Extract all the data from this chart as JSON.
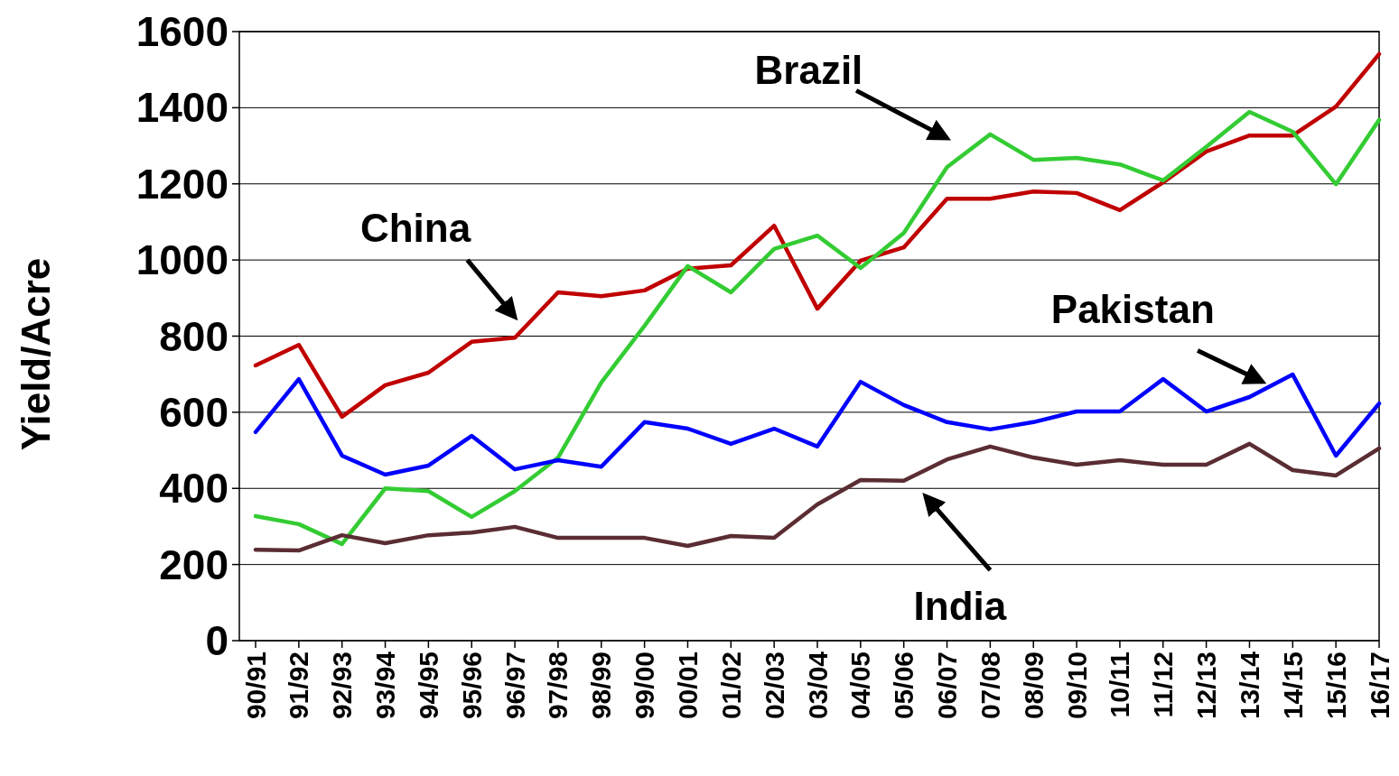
{
  "chart_data": {
    "type": "line",
    "ylabel": "Yield/Acre",
    "categories": [
      "90/91",
      "91/92",
      "92/93",
      "93/94",
      "94/95",
      "95/96",
      "96/97",
      "97/98",
      "98/99",
      "99/00",
      "00/01",
      "01/02",
      "02/03",
      "03/04",
      "04/05",
      "05/06",
      "06/07",
      "07/08",
      "08/09",
      "09/10",
      "10/11",
      "11/12",
      "12/13",
      "13/14",
      "14/15",
      "15/16",
      "16/17"
    ],
    "ylim": [
      0,
      1600
    ],
    "yticks": [
      0,
      200,
      400,
      600,
      800,
      1000,
      1200,
      1400,
      1600
    ],
    "grid": "y",
    "legend": false,
    "marker": "none",
    "line_style": "solid",
    "series": [
      {
        "name": "China",
        "color": "#c00000",
        "values": [
          723,
          777,
          588,
          671,
          704,
          785,
          796,
          915,
          905,
          920,
          977,
          986,
          1090,
          872,
          998,
          1033,
          1161,
          1161,
          1180,
          1176,
          1131,
          1204,
          1285,
          1327,
          1327,
          1403,
          1541
        ]
      },
      {
        "name": "Brazil",
        "color": "#33cc33",
        "values": [
          327,
          306,
          254,
          400,
          393,
          325,
          393,
          481,
          678,
          827,
          984,
          915,
          1029,
          1064,
          979,
          1071,
          1244,
          1330,
          1263,
          1268,
          1251,
          1209,
          1297,
          1389,
          1337,
          1199,
          1368
        ]
      },
      {
        "name": "Pakistan",
        "color": "#0000ff",
        "values": [
          548,
          687,
          486,
          436,
          460,
          538,
          450,
          474,
          457,
          574,
          557,
          517,
          557,
          510,
          680,
          619,
          574,
          555,
          574,
          602,
          602,
          687,
          602,
          640,
          699,
          486,
          623
        ]
      },
      {
        "name": "India",
        "color": "#5a2d32",
        "values": [
          239,
          237,
          277,
          256,
          277,
          284,
          299,
          270,
          270,
          270,
          249,
          275,
          270,
          358,
          422,
          420,
          476,
          510,
          481,
          462,
          474,
          462,
          462,
          517,
          448,
          434,
          505
        ]
      }
    ]
  }
}
